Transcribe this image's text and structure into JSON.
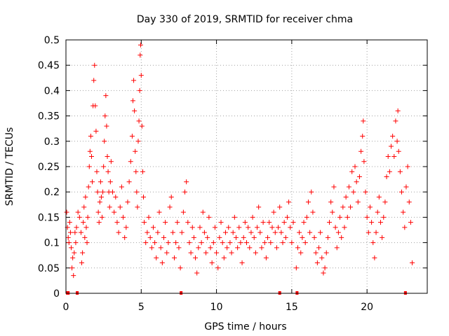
{
  "chart_data": {
    "type": "scatter",
    "title": "Day 330 of 2019, SRMTID for receiver chma",
    "xlabel": "GPS time / hours",
    "ylabel": "SRMTID / TECUs",
    "xlim": [
      0,
      24
    ],
    "ylim": [
      0,
      0.5
    ],
    "xticks": [
      0,
      5,
      10,
      15,
      20
    ],
    "xtick_labels": [
      "0",
      "5",
      "10",
      "15",
      "20"
    ],
    "yticks": [
      0,
      0.05,
      0.1,
      0.15,
      0.2,
      0.25,
      0.3,
      0.35,
      0.4,
      0.45,
      0.5
    ],
    "ytick_labels": [
      "0",
      "0.05",
      "0.1",
      "0.15",
      "0.2",
      "0.25",
      "0.3",
      "0.35",
      "0.4",
      "0.45",
      "0.5"
    ],
    "grid": true,
    "marker": "+",
    "series": [
      {
        "name": "SRMTID",
        "color": "#ff0000",
        "points": [
          [
            0.05,
            0.16
          ],
          [
            0.1,
            0.13
          ],
          [
            0.15,
            0.11
          ],
          [
            0.2,
            0.1
          ],
          [
            0.25,
            0.14
          ],
          [
            0.3,
            0.12
          ],
          [
            0.35,
            0.09
          ],
          [
            0.4,
            0.05
          ],
          [
            0.45,
            0.07
          ],
          [
            0.5,
            0.035
          ],
          [
            0.55,
            0.08
          ],
          [
            0.6,
            0.12
          ],
          [
            0.65,
            0.1
          ],
          [
            0.7,
            0.13
          ],
          [
            0.8,
            0.16
          ],
          [
            0.9,
            0.15
          ],
          [
            1.0,
            0.12
          ],
          [
            1.05,
            0.06
          ],
          [
            1.1,
            0.08
          ],
          [
            1.15,
            0.14
          ],
          [
            1.2,
            0.17
          ],
          [
            1.25,
            0.11
          ],
          [
            1.3,
            0.19
          ],
          [
            1.35,
            0.13
          ],
          [
            1.4,
            0.1
          ],
          [
            1.45,
            0.15
          ],
          [
            1.5,
            0.21
          ],
          [
            1.55,
            0.25
          ],
          [
            1.6,
            0.28
          ],
          [
            1.65,
            0.31
          ],
          [
            1.7,
            0.27
          ],
          [
            1.75,
            0.22
          ],
          [
            1.8,
            0.37
          ],
          [
            1.85,
            0.42
          ],
          [
            1.9,
            0.45
          ],
          [
            1.95,
            0.37
          ],
          [
            2.0,
            0.32
          ],
          [
            2.05,
            0.24
          ],
          [
            2.1,
            0.2
          ],
          [
            2.15,
            0.16
          ],
          [
            2.2,
            0.14
          ],
          [
            2.25,
            0.18
          ],
          [
            2.3,
            0.22
          ],
          [
            2.35,
            0.19
          ],
          [
            2.4,
            0.15
          ],
          [
            2.45,
            0.2
          ],
          [
            2.5,
            0.25
          ],
          [
            2.55,
            0.3
          ],
          [
            2.6,
            0.35
          ],
          [
            2.65,
            0.39
          ],
          [
            2.7,
            0.33
          ],
          [
            2.75,
            0.27
          ],
          [
            2.8,
            0.24
          ],
          [
            2.85,
            0.2
          ],
          [
            2.9,
            0.17
          ],
          [
            2.95,
            0.22
          ],
          [
            3.0,
            0.26
          ],
          [
            3.1,
            0.2
          ],
          [
            3.2,
            0.16
          ],
          [
            3.3,
            0.19
          ],
          [
            3.4,
            0.14
          ],
          [
            3.5,
            0.12
          ],
          [
            3.6,
            0.17
          ],
          [
            3.7,
            0.21
          ],
          [
            3.8,
            0.15
          ],
          [
            3.9,
            0.11
          ],
          [
            4.0,
            0.13
          ],
          [
            4.1,
            0.18
          ],
          [
            4.2,
            0.22
          ],
          [
            4.3,
            0.26
          ],
          [
            4.4,
            0.31
          ],
          [
            4.45,
            0.38
          ],
          [
            4.5,
            0.42
          ],
          [
            4.55,
            0.36
          ],
          [
            4.6,
            0.28
          ],
          [
            4.65,
            0.24
          ],
          [
            4.7,
            0.2
          ],
          [
            4.75,
            0.17
          ],
          [
            4.8,
            0.3
          ],
          [
            4.85,
            0.34
          ],
          [
            4.9,
            0.4
          ],
          [
            4.93,
            0.47
          ],
          [
            4.96,
            0.49
          ],
          [
            5.0,
            0.43
          ],
          [
            5.05,
            0.33
          ],
          [
            5.1,
            0.24
          ],
          [
            5.15,
            0.19
          ],
          [
            5.2,
            0.14
          ],
          [
            5.3,
            0.1
          ],
          [
            5.4,
            0.12
          ],
          [
            5.5,
            0.15
          ],
          [
            5.6,
            0.11
          ],
          [
            5.7,
            0.09
          ],
          [
            5.8,
            0.13
          ],
          [
            5.9,
            0.1
          ],
          [
            6.0,
            0.07
          ],
          [
            6.1,
            0.12
          ],
          [
            6.2,
            0.16
          ],
          [
            6.3,
            0.09
          ],
          [
            6.4,
            0.06
          ],
          [
            6.5,
            0.11
          ],
          [
            6.6,
            0.14
          ],
          [
            6.7,
            0.08
          ],
          [
            6.8,
            0.1
          ],
          [
            6.9,
            0.17
          ],
          [
            7.0,
            0.19
          ],
          [
            7.1,
            0.12
          ],
          [
            7.2,
            0.07
          ],
          [
            7.3,
            0.1
          ],
          [
            7.4,
            0.14
          ],
          [
            7.5,
            0.09
          ],
          [
            7.6,
            0.05
          ],
          [
            7.7,
            0.12
          ],
          [
            7.8,
            0.16
          ],
          [
            7.9,
            0.2
          ],
          [
            8.0,
            0.22
          ],
          [
            8.1,
            0.14
          ],
          [
            8.2,
            0.1
          ],
          [
            8.3,
            0.08
          ],
          [
            8.4,
            0.13
          ],
          [
            8.5,
            0.11
          ],
          [
            8.6,
            0.07
          ],
          [
            8.7,
            0.04
          ],
          [
            8.8,
            0.09
          ],
          [
            8.9,
            0.13
          ],
          [
            9.0,
            0.1
          ],
          [
            9.1,
            0.16
          ],
          [
            9.2,
            0.12
          ],
          [
            9.3,
            0.08
          ],
          [
            9.4,
            0.11
          ],
          [
            9.5,
            0.15
          ],
          [
            9.6,
            0.09
          ],
          [
            9.7,
            0.06
          ],
          [
            9.8,
            0.1
          ],
          [
            9.9,
            0.13
          ],
          [
            10.0,
            0.08
          ],
          [
            10.1,
            0.05
          ],
          [
            10.2,
            0.11
          ],
          [
            10.3,
            0.14
          ],
          [
            10.4,
            0.1
          ],
          [
            10.5,
            0.07
          ],
          [
            10.6,
            0.12
          ],
          [
            10.7,
            0.09
          ],
          [
            10.8,
            0.13
          ],
          [
            10.9,
            0.1
          ],
          [
            11.0,
            0.08
          ],
          [
            11.1,
            0.12
          ],
          [
            11.2,
            0.15
          ],
          [
            11.3,
            0.11
          ],
          [
            11.4,
            0.09
          ],
          [
            11.5,
            0.13
          ],
          [
            11.6,
            0.1
          ],
          [
            11.7,
            0.06
          ],
          [
            11.8,
            0.11
          ],
          [
            11.9,
            0.14
          ],
          [
            12.0,
            0.1
          ],
          [
            12.1,
            0.13
          ],
          [
            12.2,
            0.09
          ],
          [
            12.3,
            0.12
          ],
          [
            12.4,
            0.15
          ],
          [
            12.5,
            0.11
          ],
          [
            12.6,
            0.08
          ],
          [
            12.7,
            0.13
          ],
          [
            12.8,
            0.17
          ],
          [
            12.9,
            0.12
          ],
          [
            13.0,
            0.09
          ],
          [
            13.1,
            0.14
          ],
          [
            13.2,
            0.1
          ],
          [
            13.3,
            0.07
          ],
          [
            13.4,
            0.11
          ],
          [
            13.5,
            0.14
          ],
          [
            13.6,
            0.1
          ],
          [
            13.7,
            0.13
          ],
          [
            13.8,
            0.16
          ],
          [
            13.9,
            0.12
          ],
          [
            14.0,
            0.09
          ],
          [
            14.1,
            0.13
          ],
          [
            14.2,
            0.17
          ],
          [
            14.3,
            0.12
          ],
          [
            14.4,
            0.1
          ],
          [
            14.5,
            0.14
          ],
          [
            14.6,
            0.11
          ],
          [
            14.7,
            0.15
          ],
          [
            14.8,
            0.18
          ],
          [
            14.9,
            0.13
          ],
          [
            15.0,
            0.1
          ],
          [
            15.1,
            0.14
          ],
          [
            15.3,
            0.05
          ],
          [
            15.4,
            0.09
          ],
          [
            15.5,
            0.12
          ],
          [
            15.6,
            0.08
          ],
          [
            15.7,
            0.11
          ],
          [
            15.8,
            0.14
          ],
          [
            15.9,
            0.1
          ],
          [
            16.0,
            0.15
          ],
          [
            16.1,
            0.18
          ],
          [
            16.2,
            0.12
          ],
          [
            16.3,
            0.2
          ],
          [
            16.4,
            0.16
          ],
          [
            16.5,
            0.11
          ],
          [
            16.6,
            0.08
          ],
          [
            16.7,
            0.06
          ],
          [
            16.8,
            0.09
          ],
          [
            16.9,
            0.12
          ],
          [
            17.0,
            0.07
          ],
          [
            17.1,
            0.04
          ],
          [
            17.2,
            0.05
          ],
          [
            17.3,
            0.08
          ],
          [
            17.4,
            0.11
          ],
          [
            17.5,
            0.14
          ],
          [
            17.6,
            0.18
          ],
          [
            17.7,
            0.16
          ],
          [
            17.8,
            0.21
          ],
          [
            17.9,
            0.13
          ],
          [
            18.0,
            0.09
          ],
          [
            18.1,
            0.12
          ],
          [
            18.2,
            0.15
          ],
          [
            18.3,
            0.11
          ],
          [
            18.4,
            0.17
          ],
          [
            18.5,
            0.13
          ],
          [
            18.6,
            0.19
          ],
          [
            18.7,
            0.15
          ],
          [
            18.8,
            0.21
          ],
          [
            18.9,
            0.17
          ],
          [
            19.0,
            0.24
          ],
          [
            19.1,
            0.2
          ],
          [
            19.2,
            0.25
          ],
          [
            19.3,
            0.22
          ],
          [
            19.4,
            0.18
          ],
          [
            19.5,
            0.23
          ],
          [
            19.6,
            0.28
          ],
          [
            19.7,
            0.31
          ],
          [
            19.75,
            0.34
          ],
          [
            19.8,
            0.26
          ],
          [
            19.9,
            0.2
          ],
          [
            20.0,
            0.15
          ],
          [
            20.1,
            0.12
          ],
          [
            20.2,
            0.17
          ],
          [
            20.3,
            0.14
          ],
          [
            20.4,
            0.1
          ],
          [
            20.5,
            0.07
          ],
          [
            20.6,
            0.12
          ],
          [
            20.7,
            0.16
          ],
          [
            20.8,
            0.19
          ],
          [
            20.9,
            0.14
          ],
          [
            21.0,
            0.11
          ],
          [
            21.1,
            0.15
          ],
          [
            21.2,
            0.18
          ],
          [
            21.3,
            0.23
          ],
          [
            21.4,
            0.27
          ],
          [
            21.5,
            0.24
          ],
          [
            21.6,
            0.29
          ],
          [
            21.7,
            0.31
          ],
          [
            21.8,
            0.27
          ],
          [
            21.9,
            0.34
          ],
          [
            22.0,
            0.3
          ],
          [
            22.05,
            0.36
          ],
          [
            22.1,
            0.28
          ],
          [
            22.2,
            0.24
          ],
          [
            22.3,
            0.2
          ],
          [
            22.4,
            0.16
          ],
          [
            22.5,
            0.13
          ],
          [
            22.6,
            0.21
          ],
          [
            22.7,
            0.25
          ],
          [
            22.8,
            0.18
          ],
          [
            22.9,
            0.14
          ],
          [
            23.0,
            0.06
          ]
        ]
      }
    ],
    "axis_markers_at_zero": [
      0.1,
      0.15,
      0.75,
      7.65,
      14.2,
      15.35,
      22.55
    ]
  }
}
